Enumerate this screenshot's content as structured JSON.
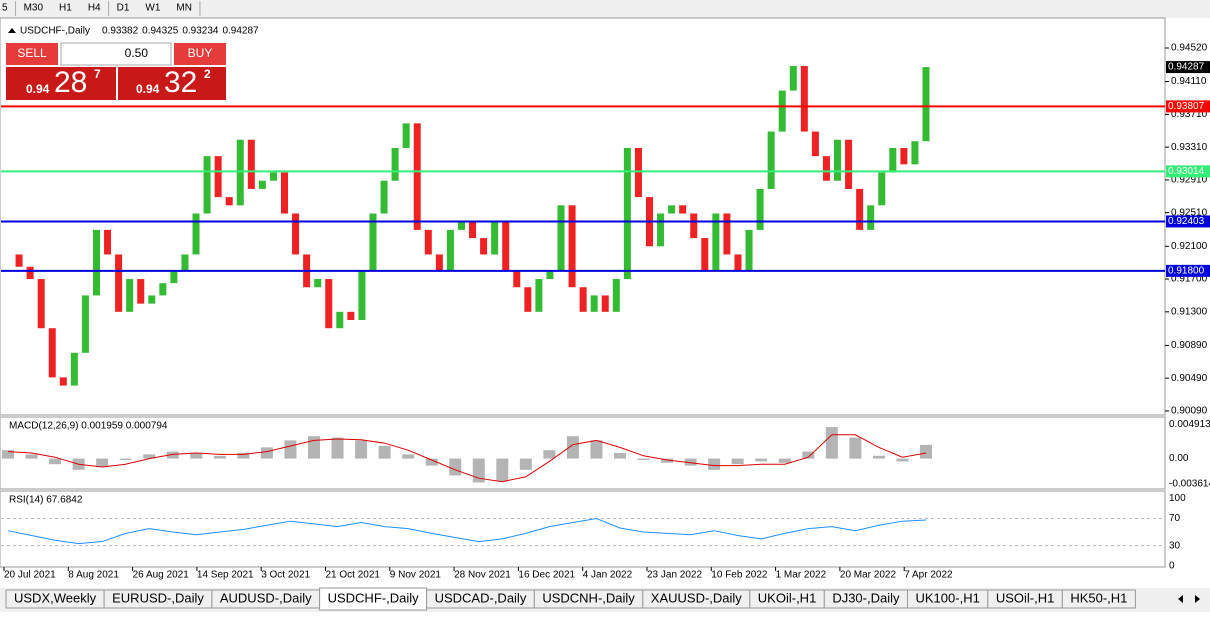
{
  "toolbar": {
    "timeframes": [
      "5",
      "M30",
      "H1",
      "H4",
      "D1",
      "W1",
      "MN"
    ]
  },
  "chart": {
    "symbol": "USDCHF-,Daily",
    "ohlc": [
      0.93382,
      0.94325,
      0.93234,
      0.94287
    ],
    "trade": {
      "sell": "SELL",
      "buy": "BUY",
      "lot": "0.50",
      "sell_price": {
        "prefix": "0.94",
        "big": "28",
        "small": "7"
      },
      "buy_price": {
        "prefix": "0.94",
        "big": "32",
        "small": "2"
      }
    },
    "ylim": [
      0.90053,
      0.94886
    ],
    "yticks": [
      {
        "value": 0.9452,
        "label": "0.94520"
      },
      {
        "value": 0.9411,
        "label": "0.94110"
      },
      {
        "value": 0.9371,
        "label": "0.93710"
      },
      {
        "value": 0.9331,
        "label": "0.93310"
      },
      {
        "value": 0.9291,
        "label": "0.92910"
      },
      {
        "value": 0.9251,
        "label": "0.92510"
      },
      {
        "value": 0.921,
        "label": "0.92100"
      },
      {
        "value": 0.917,
        "label": "0.91700"
      },
      {
        "value": 0.913,
        "label": "0.91300"
      },
      {
        "value": 0.9089,
        "label": "0.90890"
      },
      {
        "value": 0.9049,
        "label": "0.90490"
      },
      {
        "value": 0.9009,
        "label": "0.90090"
      }
    ],
    "current_price": 0.94287,
    "levels": [
      {
        "value": 0.93807,
        "label": "0.93807",
        "color": "#ff0000"
      },
      {
        "value": 0.93014,
        "label": "0.93014",
        "color": "#33ee77"
      },
      {
        "value": 0.92403,
        "label": "0.92403",
        "color": "#0000dd"
      },
      {
        "value": 0.918,
        "label": "0.91800",
        "color": "#0000dd"
      }
    ],
    "up_color": "#33bb33",
    "down_color": "#ee2222",
    "closes": [
      0.92,
      0.9185,
      0.917,
      0.911,
      0.905,
      0.904,
      0.908,
      0.915,
      0.923,
      0.92,
      0.913,
      0.917,
      0.914,
      0.915,
      0.9165,
      0.918,
      0.92,
      0.925,
      0.932,
      0.927,
      0.926,
      0.934,
      0.928,
      0.929,
      0.93,
      0.925,
      0.92,
      0.916,
      0.917,
      0.911,
      0.913,
      0.912,
      0.918,
      0.925,
      0.929,
      0.933,
      0.936,
      0.923,
      0.92,
      0.918,
      0.923,
      0.924,
      0.922,
      0.92,
      0.924,
      0.918,
      0.916,
      0.913,
      0.917,
      0.918,
      0.926,
      0.916,
      0.913,
      0.915,
      0.913,
      0.917,
      0.933,
      0.927,
      0.921,
      0.925,
      0.926,
      0.925,
      0.922,
      0.918,
      0.925,
      0.92,
      0.918,
      0.923,
      0.928,
      0.935,
      0.94,
      0.943,
      0.935,
      0.932,
      0.929,
      0.934,
      0.928,
      0.923,
      0.926,
      0.93,
      0.933,
      0.931,
      0.93382,
      0.94287
    ],
    "dates": [
      "20 Jul 2021",
      "8 Aug 2021",
      "26 Aug 2021",
      "14 Sep 2021",
      "3 Oct 2021",
      "21 Oct 2021",
      "9 Nov 2021",
      "28 Nov 2021",
      "16 Dec 2021",
      "4 Jan 2022",
      "23 Jan 2022",
      "10 Feb 2022",
      "1 Mar 2022",
      "20 Mar 2022",
      "7 Apr 2022"
    ]
  },
  "macd": {
    "label": "MACD(12,26,9) 0.001959 0.000794",
    "ylim": [
      -0.0042,
      0.0058
    ],
    "yticks": [
      {
        "value": 0.004913,
        "label": "0.004913"
      },
      {
        "value": 0,
        "label": "0.00"
      },
      {
        "value": -0.003614,
        "label": "-0.003614"
      }
    ],
    "histogram": [
      0.0012,
      0.0006,
      -0.0008,
      -0.0016,
      -0.0012,
      -0.0002,
      0.0006,
      0.001,
      0.0008,
      0.0004,
      0.0008,
      0.0016,
      0.0026,
      0.0032,
      0.003,
      0.0026,
      0.0018,
      0.0006,
      -0.001,
      -0.0024,
      -0.0034,
      -0.0032,
      -0.0016,
      0.0012,
      0.0032,
      0.0026,
      0.0008,
      -0.0002,
      -0.0006,
      -0.001,
      -0.0016,
      -0.0008,
      -0.0004,
      -0.0006,
      0.001,
      0.0045,
      0.003,
      0.0004,
      -0.0004,
      0.001959
    ],
    "signal": [
      0.001,
      0.0008,
      0.0002,
      -0.0008,
      -0.0012,
      -0.0008,
      0,
      0.0006,
      0.0008,
      0.0006,
      0.0006,
      0.001,
      0.0018,
      0.0026,
      0.0028,
      0.0027,
      0.0022,
      0.0012,
      -0.0002,
      -0.0016,
      -0.0028,
      -0.0033,
      -0.0026,
      -0.0004,
      0.002,
      0.0026,
      0.0016,
      0.0004,
      -0.0002,
      -0.0006,
      -0.001,
      -0.001,
      -0.0008,
      -0.0008,
      0.0002,
      0.0034,
      0.0034,
      0.0016,
      0.0002,
      0.000794
    ]
  },
  "rsi": {
    "label": "RSI(14) 67.6842",
    "ylim": [
      0,
      109
    ],
    "yticks": [
      100,
      70,
      30,
      0
    ],
    "values": [
      52,
      45,
      38,
      33,
      36,
      48,
      55,
      50,
      46,
      50,
      54,
      60,
      66,
      62,
      58,
      64,
      58,
      55,
      48,
      42,
      36,
      40,
      48,
      58,
      64,
      70,
      56,
      50,
      48,
      46,
      52,
      45,
      40,
      48,
      55,
      58,
      52,
      60,
      66,
      67.6842
    ]
  },
  "tabs": [
    "USDX,Weekly",
    "EURUSD-,Daily",
    "AUDUSD-,Daily",
    "USDCHF-,Daily",
    "USDCAD-,Daily",
    "USDCNH-,Daily",
    "XAUUSD-,Daily",
    "UKOil-,H1",
    "DJ30-,Daily",
    "UK100-,H1",
    "USOil-,H1",
    "HK50-,H1"
  ],
  "active_tab": 3
}
